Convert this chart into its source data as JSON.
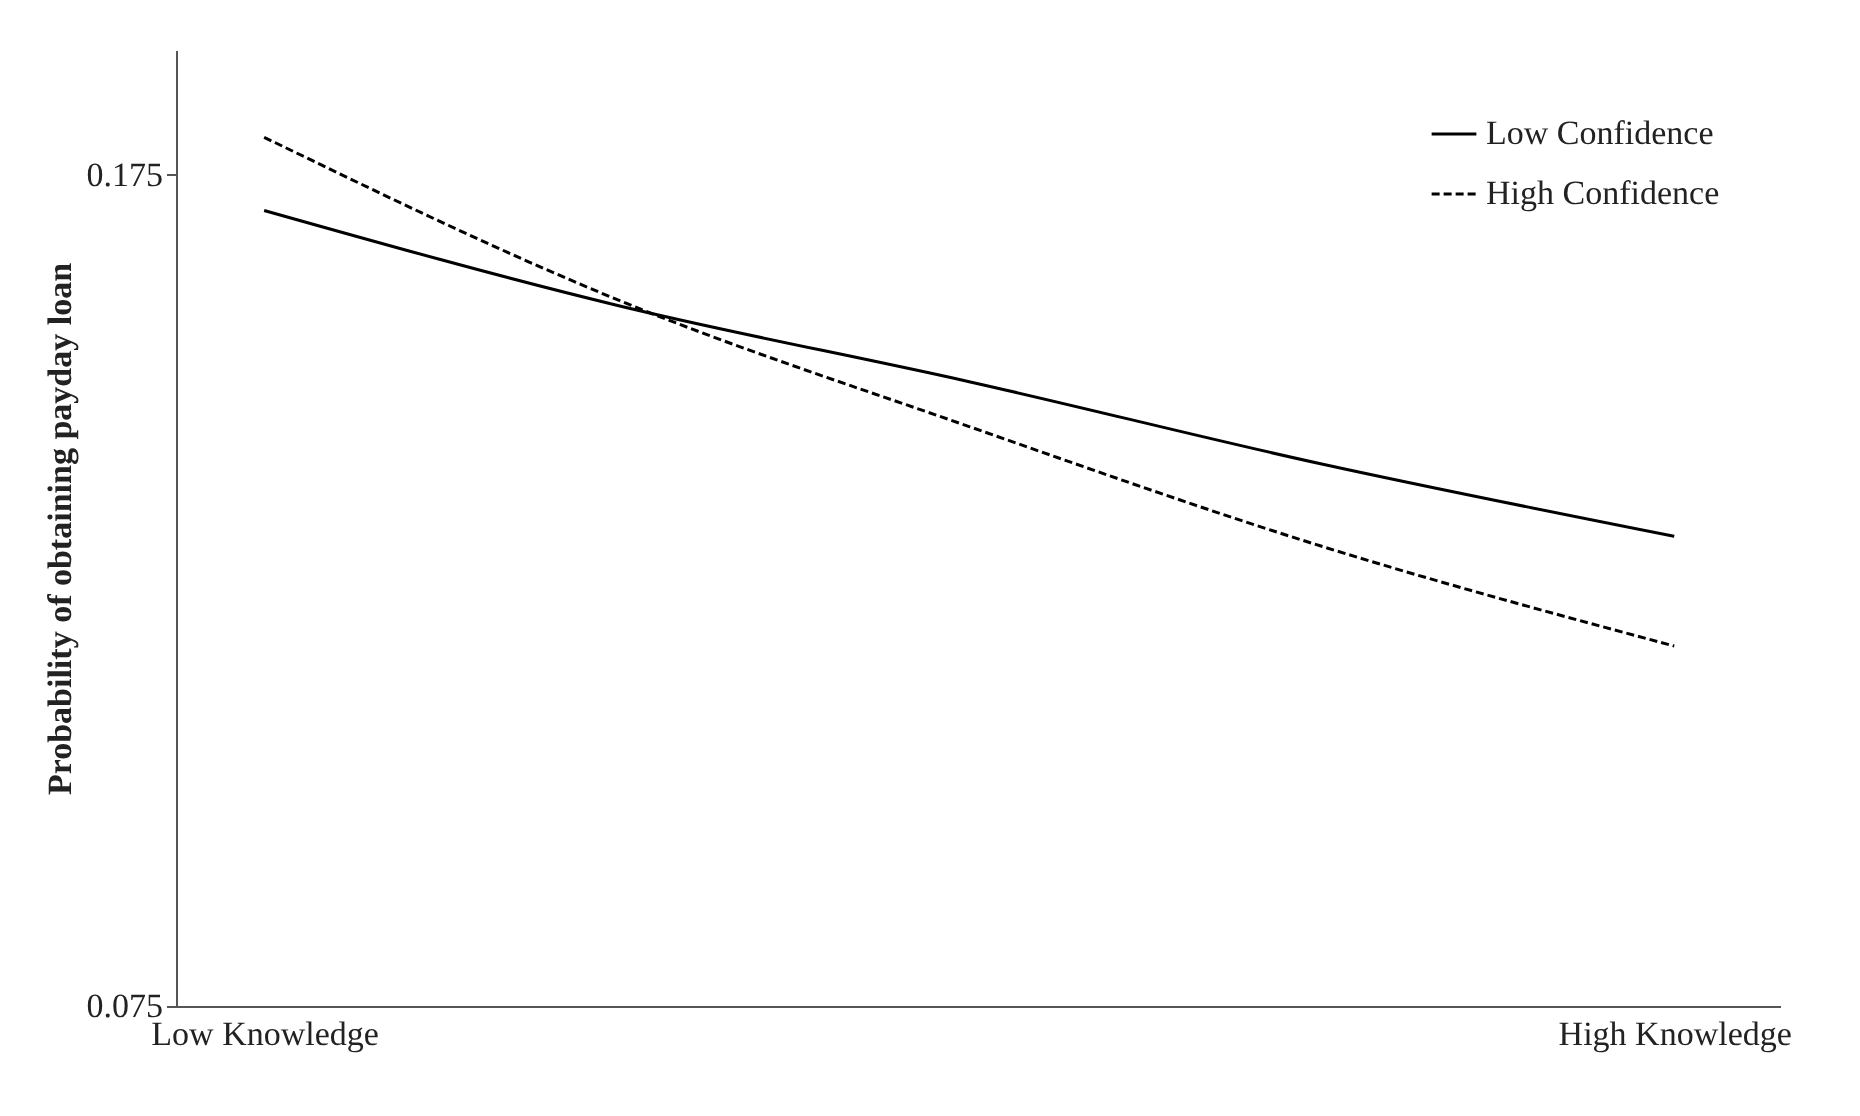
{
  "chart_data": {
    "type": "line",
    "ylabel": "Probability of obtaining payday loan",
    "categories": [
      "Low Knowledge",
      null,
      null,
      null,
      "High Knowledge"
    ],
    "series": [
      {
        "name": "Low Confidence",
        "color": "#000000",
        "line_style": "solid",
        "values": [
          0.1707,
          0.1593,
          0.1501,
          0.1402,
          0.1315
        ]
      },
      {
        "name": "High Confidence",
        "color": "#000000",
        "line_style": "dashed",
        "values": [
          0.1795,
          0.16,
          0.1447,
          0.1303,
          0.1183
        ]
      }
    ],
    "ylim": [
      0.075,
      0.19
    ],
    "yticks": [
      0.075,
      0.175
    ],
    "grid": false,
    "legend": "top right",
    "marker": "none"
  }
}
